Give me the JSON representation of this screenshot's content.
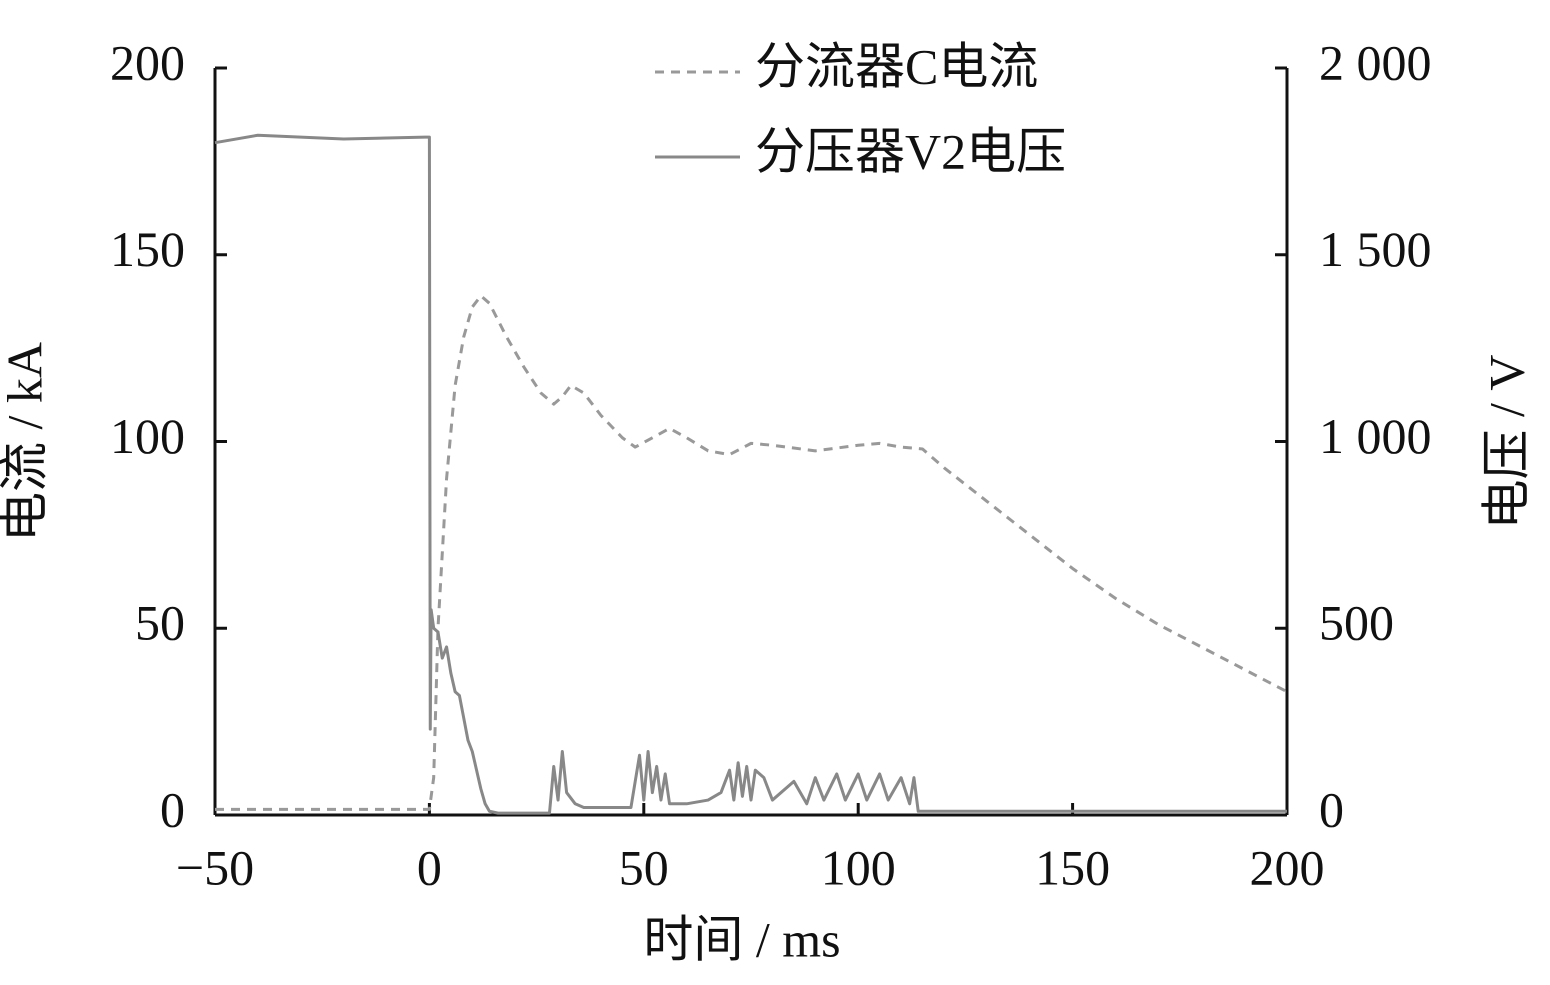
{
  "chart_data": {
    "type": "line",
    "x_label": "时间 / ms",
    "y_label": "电流 / kA",
    "y2_label": "电压 / V",
    "xlim": [
      -50,
      200
    ],
    "xticks": [
      {
        "value": -50,
        "label": "−50"
      },
      0,
      50,
      100,
      150,
      200
    ],
    "ylim": [
      0,
      200
    ],
    "yticks": [
      0,
      50,
      100,
      150,
      200
    ],
    "y2lim": [
      0,
      2000
    ],
    "y2ticks": [
      {
        "value": 0,
        "label": "0"
      },
      {
        "value": 500,
        "label": "500"
      },
      {
        "value": 1000,
        "label": "1 000"
      },
      {
        "value": 1500,
        "label": "1 500"
      },
      {
        "value": 2000,
        "label": "2 000"
      }
    ],
    "legend": "upper center",
    "series": [
      {
        "name": "分流器C电流",
        "color": "#999999",
        "dashed": true,
        "axis": "y",
        "x": [
          -50,
          0,
          1,
          2,
          4,
          6,
          8,
          10,
          12,
          14,
          18,
          22,
          26,
          29,
          31,
          33,
          36,
          40,
          45,
          48,
          52,
          56,
          60,
          65,
          70,
          75,
          80,
          90,
          100,
          105,
          110,
          115,
          120,
          130,
          140,
          150,
          160,
          170,
          180,
          190,
          200
        ],
        "values": [
          1.5,
          1.5,
          10,
          50,
          90,
          115,
          128,
          136,
          139,
          137,
          128,
          120,
          113,
          110,
          112,
          115,
          113,
          107,
          101,
          98.5,
          101,
          103.5,
          101,
          97.5,
          96.5,
          99.5,
          99,
          97.5,
          99,
          99.5,
          98.5,
          98,
          93,
          84,
          75,
          66,
          58,
          51,
          45,
          39,
          33
        ]
      },
      {
        "name": "分压器V2电压",
        "color": "#888888",
        "dashed": false,
        "axis": "y2",
        "x": [
          -50,
          -40,
          -20,
          -1,
          0,
          0.2,
          0.4,
          1,
          2,
          3,
          4,
          5,
          6,
          7,
          8,
          9,
          10,
          11,
          12,
          13,
          14,
          16,
          28,
          29,
          30,
          31,
          32,
          34,
          36,
          40,
          45,
          47,
          49,
          50,
          51,
          52,
          53,
          54,
          55,
          56,
          60,
          65,
          68,
          70,
          71,
          72,
          73,
          74,
          75,
          76,
          78,
          80,
          85,
          88,
          90,
          92,
          95,
          97,
          100,
          102,
          105,
          107,
          110,
          112,
          113,
          114,
          120,
          200
        ],
        "values": [
          1800,
          1820,
          1810,
          1815,
          1815,
          230,
          550,
          500,
          490,
          420,
          450,
          380,
          330,
          320,
          260,
          200,
          170,
          120,
          70,
          30,
          10,
          5,
          5,
          130,
          40,
          170,
          60,
          30,
          20,
          20,
          20,
          20,
          160,
          40,
          170,
          60,
          130,
          40,
          110,
          30,
          30,
          40,
          60,
          120,
          40,
          140,
          50,
          130,
          40,
          120,
          100,
          40,
          90,
          30,
          100,
          40,
          110,
          40,
          110,
          40,
          110,
          40,
          100,
          30,
          100,
          10,
          10,
          10
        ]
      }
    ]
  }
}
